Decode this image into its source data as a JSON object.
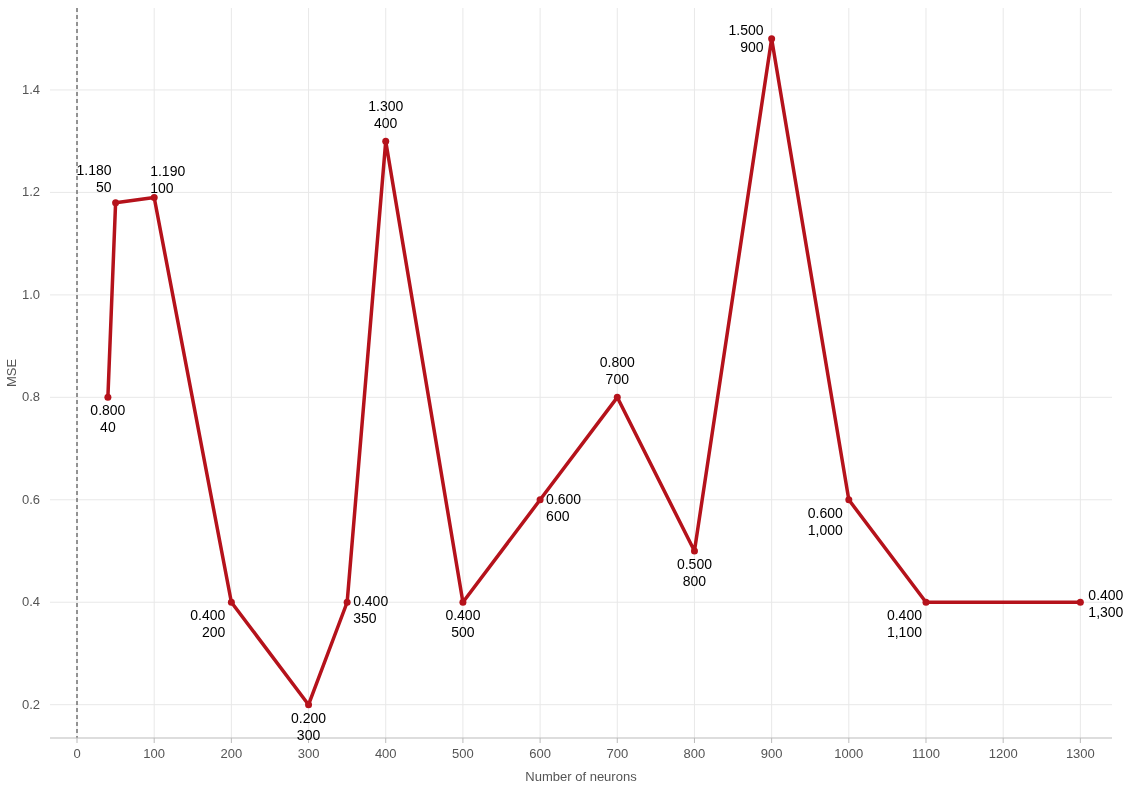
{
  "chart_data": {
    "type": "line",
    "xlabel": "Number of neurons",
    "ylabel": "MSE",
    "x": [
      40,
      50,
      100,
      200,
      300,
      350,
      400,
      500,
      600,
      700,
      800,
      900,
      1000,
      1100,
      1300
    ],
    "series": [
      {
        "color": "#b5121b",
        "values": [
          0.8,
          1.18,
          1.19,
          0.4,
          0.2,
          0.4,
          1.3,
          0.4,
          0.6,
          0.8,
          0.5,
          1.5,
          0.6,
          0.4,
          0.4
        ],
        "value_labels": [
          "0.800",
          "1.180",
          "1.190",
          "0.400",
          "0.200",
          "0.400",
          "1.300",
          "0.400",
          "0.600",
          "0.800",
          "0.500",
          "1.500",
          "0.600",
          "0.400",
          "0.400"
        ]
      }
    ],
    "annotations": [
      {
        "text": "40",
        "x": 40,
        "y": 0.8
      },
      {
        "text": "50",
        "x": 50,
        "y": 1.18
      },
      {
        "text": "100",
        "x": 100,
        "y": 1.19
      },
      {
        "text": "200",
        "x": 200,
        "y": 0.4
      },
      {
        "text": "300",
        "x": 300,
        "y": 0.2
      },
      {
        "text": "350",
        "x": 350,
        "y": 0.4
      },
      {
        "text": "400",
        "x": 400,
        "y": 1.3
      },
      {
        "text": "500",
        "x": 500,
        "y": 0.4
      },
      {
        "text": "600",
        "x": 600,
        "y": 0.6
      },
      {
        "text": "700",
        "x": 700,
        "y": 0.8
      },
      {
        "text": "800",
        "x": 800,
        "y": 0.5
      },
      {
        "text": "900",
        "x": 900,
        "y": 1.5
      },
      {
        "text": "1,000",
        "x": 1000,
        "y": 0.6
      },
      {
        "text": "1,100",
        "x": 1100,
        "y": 0.4
      },
      {
        "text": "1,300",
        "x": 1300,
        "y": 0.4
      }
    ],
    "xlim": [
      -35,
      1341
    ],
    "ylim": [
      0.135,
      1.56
    ],
    "xticks": [
      0,
      100,
      200,
      300,
      400,
      500,
      600,
      700,
      800,
      900,
      1000,
      1100,
      1200,
      1300
    ],
    "yticks": [
      0.2,
      0.4,
      0.6,
      0.8,
      {
        "value": 1,
        "label": "1.0"
      },
      1.2,
      1.4
    ],
    "grid": true,
    "marker": "circle",
    "line_style": "solid",
    "ref_lines": [
      {
        "axis": "x",
        "value": 0,
        "color": "#333333",
        "line_style": "dashed"
      }
    ]
  }
}
